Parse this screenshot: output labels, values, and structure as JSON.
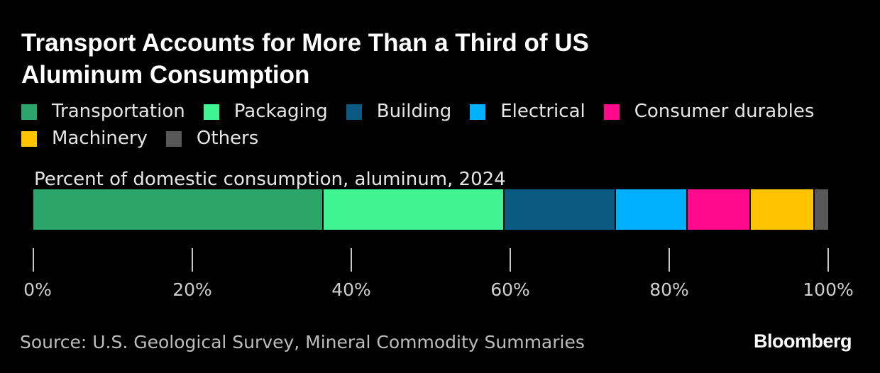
{
  "title": "Transport Accounts for More Than a Third of US\nAluminum Consumption",
  "legend": [
    {
      "label": "Transportation",
      "color": "#2ba56a"
    },
    {
      "label": "Packaging",
      "color": "#40f492"
    },
    {
      "label": "Building",
      "color": "#0a5a82"
    },
    {
      "label": "Electrical",
      "color": "#00b0ff"
    },
    {
      "label": "Consumer durables",
      "color": "#ff0a8c"
    },
    {
      "label": "Machinery",
      "color": "#ffc400"
    },
    {
      "label": "Others",
      "color": "#585858"
    }
  ],
  "chart_data": {
    "type": "bar",
    "orientation": "horizontal-stacked",
    "title": "Transport Accounts for More Than a Third of US Aluminum Consumption",
    "subtitle": "Percent of domestic consumption, aluminum, 2024",
    "categories": [
      "Percent of domestic consumption, aluminum, 2024"
    ],
    "series": [
      {
        "name": "Transportation",
        "values": [
          36.3
        ]
      },
      {
        "name": "Packaging",
        "values": [
          22.8
        ]
      },
      {
        "name": "Building",
        "values": [
          14.0
        ]
      },
      {
        "name": "Electrical",
        "values": [
          9.0
        ]
      },
      {
        "name": "Consumer durables",
        "values": [
          8.0
        ]
      },
      {
        "name": "Machinery",
        "values": [
          8.0
        ]
      },
      {
        "name": "Others",
        "values": [
          1.9
        ]
      }
    ],
    "xlim": [
      0,
      100
    ],
    "xticks": [
      0,
      20,
      40,
      60,
      80,
      100
    ],
    "xtick_labels": [
      "0%",
      "20%",
      "40%",
      "60%",
      "80%",
      "100%"
    ],
    "legend_position": "top",
    "grid": false
  },
  "source": "Source: U.S. Geological Survey, Mineral Commodity Summaries",
  "brand": "Bloomberg"
}
